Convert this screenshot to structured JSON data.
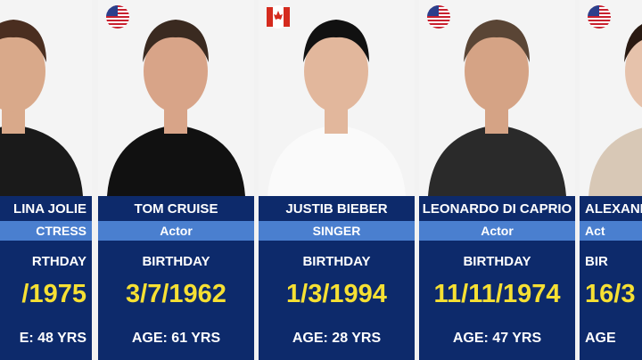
{
  "cards": [
    {
      "name": "LINA JOLIE",
      "role": "CTRESS",
      "birthday": "RTHDAY",
      "date": "/1975",
      "age": "E:  48 YRS",
      "flag": "none",
      "align": "right"
    },
    {
      "name": "TOM CRUISE",
      "role": "Actor",
      "birthday": "BIRTHDAY",
      "date": "3/7/1962",
      "age": "AGE:  61 YRS",
      "flag": "us",
      "align": "center"
    },
    {
      "name": "JUSTIB BIEBER",
      "role": "SINGER",
      "birthday": "BIRTHDAY",
      "date": "1/3/1994",
      "age": "AGE:  28 YRS",
      "flag": "ca",
      "align": "center"
    },
    {
      "name": "LEONARDO DI CAPRIO",
      "role": "Actor",
      "birthday": "BIRTHDAY",
      "date": "11/11/1974",
      "age": "AGE:  47 YRS",
      "flag": "us",
      "align": "center"
    },
    {
      "name": "ALEXAND",
      "role": "Act",
      "birthday": "BIR",
      "date": "16/3",
      "age": "AGE",
      "flag": "us",
      "align": "left"
    }
  ]
}
